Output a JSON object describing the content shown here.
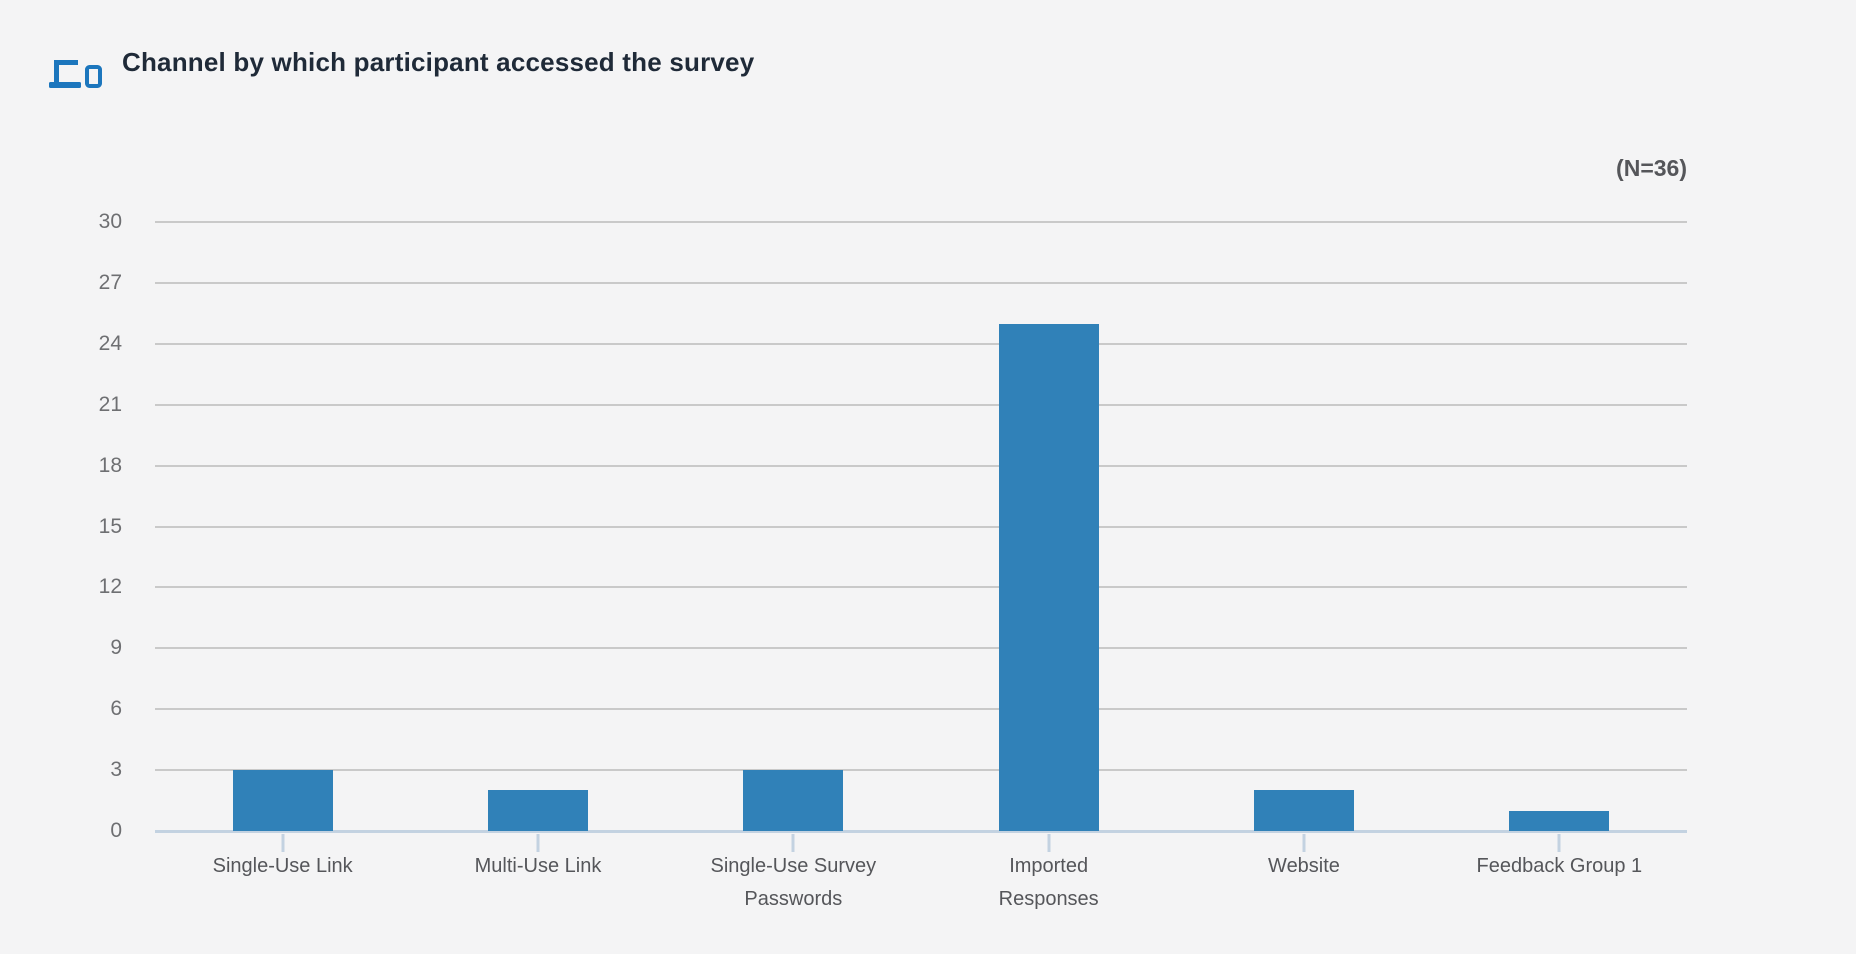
{
  "header": {
    "title": "Channel by which participant accessed the survey",
    "icon": "devices-icon"
  },
  "theme": {
    "background": "#f4f4f5",
    "bar_color": "#3081b8",
    "icon_color": "#1c76bd",
    "gridline_color": "#c9c9c9",
    "axis_color": "#c3d2e1",
    "title_color": "#1f2a38",
    "y_label_color": "#6e6f72",
    "x_label_color": "#55565a"
  },
  "chart_data": {
    "type": "bar",
    "title": "Channel by which participant accessed the survey",
    "n_label": "(N=36)",
    "categories": [
      "Single-Use Link",
      "Multi-Use Link",
      "Single-Use Survey\nPasswords",
      "Imported\nResponses",
      "Website",
      "Feedback Group 1"
    ],
    "values": [
      3,
      2,
      3,
      25,
      2,
      1
    ],
    "xlabel": "",
    "ylabel": "",
    "ylim": [
      0,
      30
    ],
    "yticks": [
      0,
      3,
      6,
      9,
      12,
      15,
      18,
      21,
      24,
      27,
      30
    ],
    "grid": true,
    "legend": false
  }
}
